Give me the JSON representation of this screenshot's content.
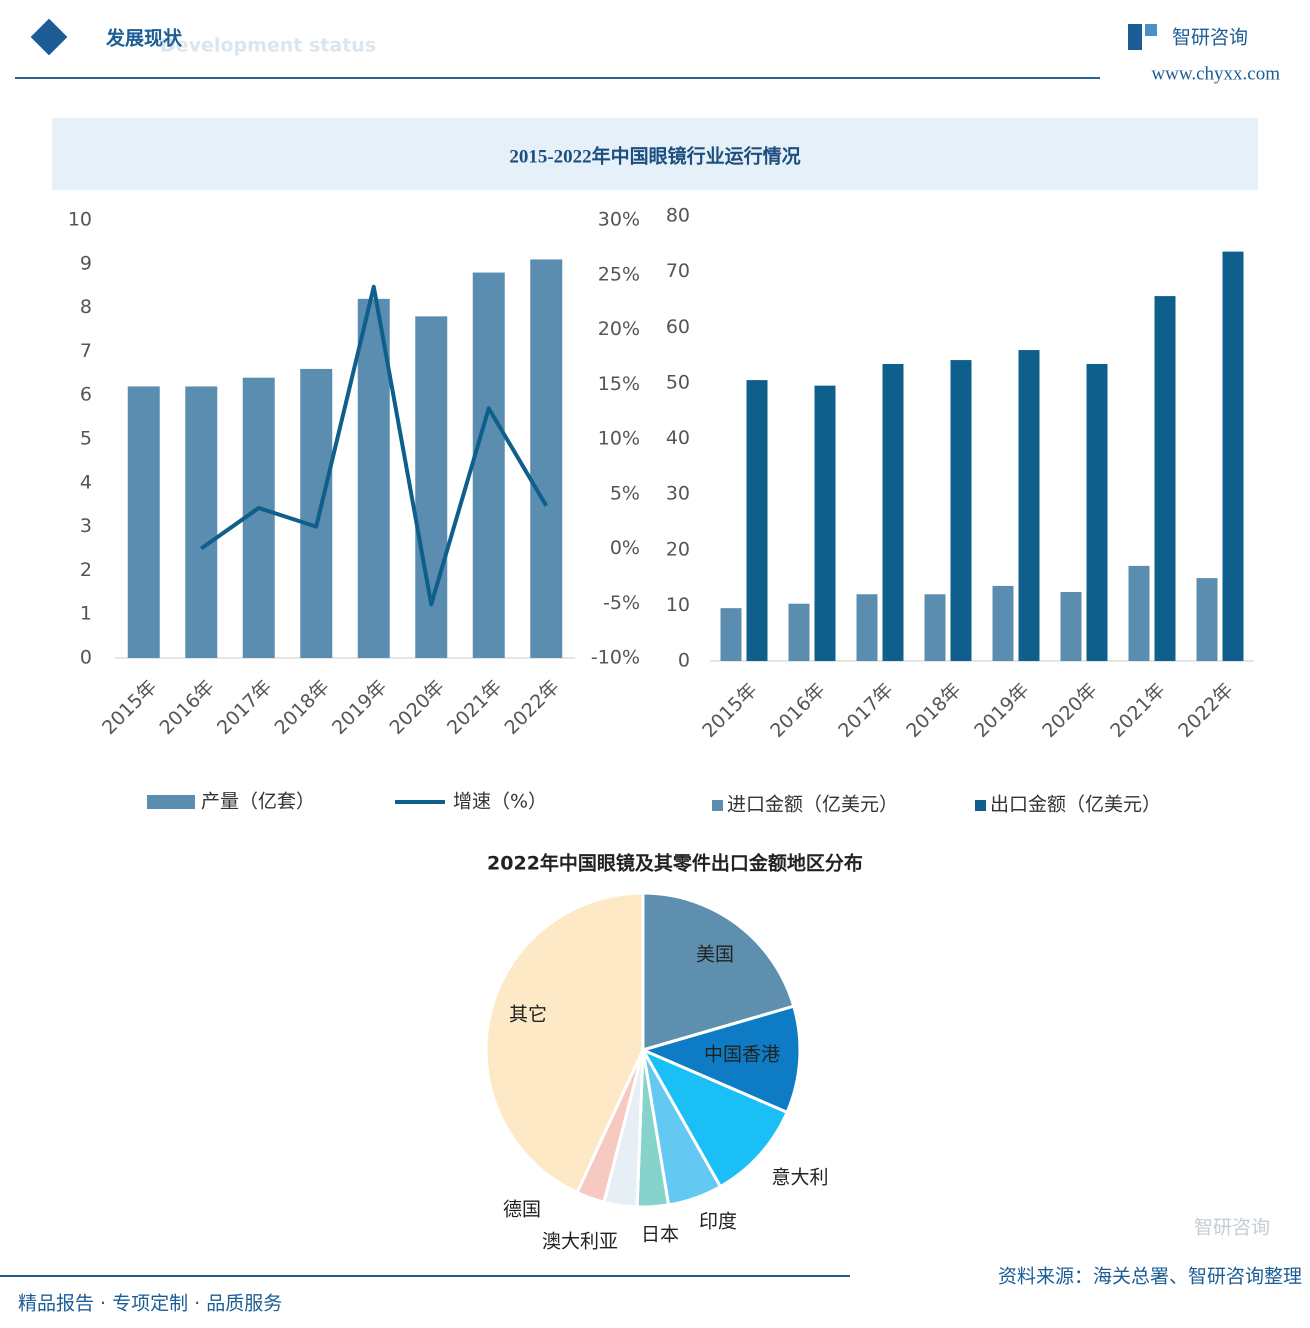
{
  "header": {
    "title": "发展现状",
    "subtitle": "Development status",
    "logo": "智研咨询",
    "website": "www.chyxx.com"
  },
  "section_title": "2015-2022年中国眼镜行业运行情况",
  "chart_data": [
    {
      "type": "bar",
      "categories": [
        "2015年",
        "2016年",
        "2017年",
        "2018年",
        "2019年",
        "2020年",
        "2021年",
        "2022年"
      ],
      "series": [
        {
          "name": "产量（亿套）",
          "color": "#5b8db0",
          "values": [
            6.2,
            6.2,
            6.4,
            6.6,
            8.2,
            7.8,
            8.8,
            9.1
          ]
        },
        {
          "name": "增速（%）",
          "color": "#0e5f8c",
          "type": "line",
          "axis": "y2",
          "values": [
            null,
            0,
            3.7,
            2.0,
            23.9,
            -5.1,
            12.8,
            3.9
          ]
        }
      ],
      "ylim": [
        0,
        10
      ],
      "yticks": [
        0,
        1,
        2,
        3,
        4,
        5,
        6,
        7,
        8,
        9,
        10
      ],
      "y2lim": [
        -10,
        30
      ],
      "y2ticks": [
        {
          "value": -10,
          "label": "-10%"
        },
        {
          "value": -5,
          "label": "-5%"
        },
        {
          "value": 0,
          "label": "0%"
        },
        {
          "value": 5,
          "label": "5%"
        },
        {
          "value": 10,
          "label": "10%"
        },
        {
          "value": 15,
          "label": "15%"
        },
        {
          "value": 20,
          "label": "20%"
        },
        {
          "value": 25,
          "label": "25%"
        },
        {
          "value": 30,
          "label": "30%"
        }
      ]
    },
    {
      "type": "bar",
      "categories": [
        "2015年",
        "2016年",
        "2017年",
        "2018年",
        "2019年",
        "2020年",
        "2021年",
        "2022年"
      ],
      "series": [
        {
          "name": "进口金额（亿美元）",
          "color": "#5b8db0",
          "values": [
            9.5,
            10.3,
            12.0,
            12.0,
            13.5,
            12.4,
            17.1,
            14.9
          ]
        },
        {
          "name": "出口金额（亿美元）",
          "color": "#0e5f8c",
          "values": [
            50.5,
            49.5,
            53.4,
            54.1,
            55.9,
            53.4,
            65.6,
            73.6
          ]
        }
      ],
      "ylim": [
        0,
        80
      ],
      "yticks": [
        0,
        10,
        20,
        30,
        40,
        50,
        60,
        70,
        80
      ]
    },
    {
      "type": "pie",
      "title": "2022年中国眼镜及其零件出口金额地区分布",
      "categories": [
        "美国",
        "中国香港",
        "意大利",
        "印度",
        "日本",
        "澳大利亚",
        "德国",
        "其它"
      ],
      "values": [
        20.5,
        11.0,
        10.3,
        5.6,
        3.2,
        3.4,
        2.9,
        43.1
      ],
      "colors": [
        "#5e8faf",
        "#0d7cc4",
        "#1abff5",
        "#63c9f2",
        "#86d3cb",
        "#e6eff5",
        "#f6c9c1",
        "#fde9c6"
      ]
    }
  ],
  "footer": {
    "slogan": "精品报告 · 专项定制 · 品质服务",
    "source": "资料来源：海关总署、智研咨询整理",
    "watermark": "智研咨询"
  }
}
